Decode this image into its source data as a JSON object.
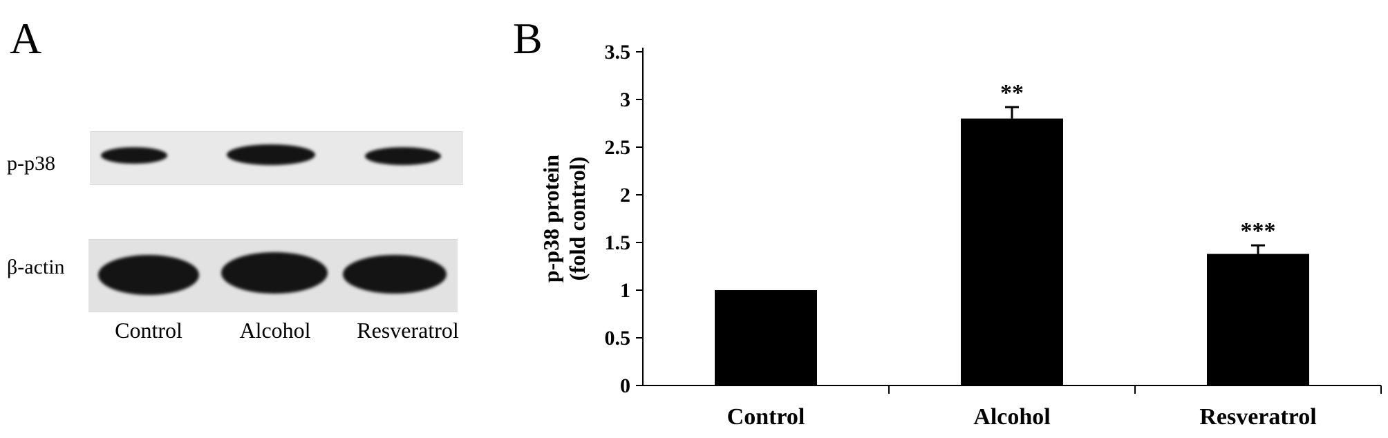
{
  "panel_a": {
    "letter": "A",
    "rows": [
      "p-p38",
      "β-actin"
    ],
    "lanes": [
      "Control",
      "Alcohol",
      "Resveratrol"
    ]
  },
  "panel_b": {
    "letter": "B"
  },
  "chart_data": {
    "type": "bar",
    "categories": [
      "Control",
      "Alcohol",
      "Resveratrol"
    ],
    "values": [
      1.0,
      2.8,
      1.38
    ],
    "errors": [
      0,
      0.12,
      0.09
    ],
    "significance": [
      "",
      "**",
      "***"
    ],
    "ylabel_lines": [
      "p-p38 protein",
      "(fold control)"
    ],
    "xlabel": "",
    "title": "",
    "ylim": [
      0,
      3.5
    ],
    "yticks": [
      "0",
      "0.5",
      "1",
      "1.5",
      "2",
      "2.5",
      "3",
      "3.5"
    ],
    "grid": false,
    "bar_color": "#000000"
  }
}
